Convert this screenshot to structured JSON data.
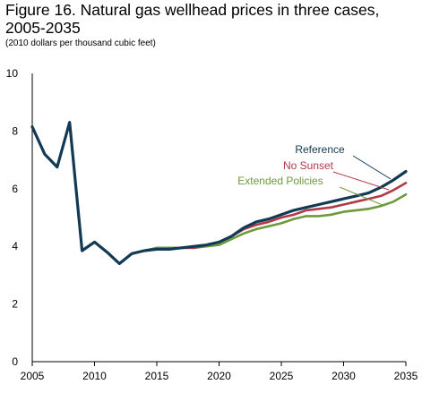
{
  "title_line1": "Figure 16. Natural gas wellhead prices in three cases,",
  "title_line2": "2005-2035",
  "subtitle": "(2010 dollars per thousand cubic feet)",
  "chart_data": {
    "type": "line",
    "title": "Figure 16. Natural gas wellhead prices in three cases, 2005-2035",
    "ylabel": "(2010 dollars per thousand cubic feet)",
    "xlabel": "",
    "xlim": [
      2005,
      2035
    ],
    "ylim": [
      0,
      10
    ],
    "x_ticks": [
      2005,
      2010,
      2015,
      2020,
      2025,
      2030,
      2035
    ],
    "y_ticks": [
      0,
      2,
      4,
      6,
      8,
      10
    ],
    "grid": false,
    "legend": "inline labels near line ends",
    "x": [
      2005,
      2006,
      2007,
      2008,
      2009,
      2010,
      2011,
      2012,
      2013,
      2014,
      2015,
      2016,
      2017,
      2018,
      2019,
      2020,
      2021,
      2022,
      2023,
      2024,
      2025,
      2026,
      2027,
      2028,
      2029,
      2030,
      2031,
      2032,
      2033,
      2034,
      2035
    ],
    "series": [
      {
        "name": "Extended Policies",
        "color": "#6f9a3c",
        "values": [
          8.15,
          7.2,
          6.75,
          8.3,
          3.85,
          4.15,
          3.8,
          3.4,
          3.75,
          3.85,
          3.95,
          3.95,
          3.95,
          3.95,
          4.0,
          4.05,
          4.25,
          4.45,
          4.6,
          4.7,
          4.8,
          4.95,
          5.05,
          5.05,
          5.1,
          5.2,
          5.25,
          5.3,
          5.4,
          5.55,
          5.8
        ]
      },
      {
        "name": "No Sunset",
        "color": "#b03a48",
        "values": [
          8.15,
          7.2,
          6.75,
          8.3,
          3.85,
          4.15,
          3.8,
          3.4,
          3.75,
          3.85,
          3.9,
          3.9,
          3.95,
          3.95,
          4.05,
          4.15,
          4.35,
          4.6,
          4.75,
          4.85,
          5.0,
          5.1,
          5.25,
          5.3,
          5.35,
          5.45,
          5.55,
          5.65,
          5.75,
          5.95,
          6.2
        ]
      },
      {
        "name": "Reference",
        "color": "#123a55",
        "values": [
          8.15,
          7.2,
          6.75,
          8.3,
          3.85,
          4.15,
          3.8,
          3.4,
          3.75,
          3.85,
          3.9,
          3.9,
          3.95,
          4.0,
          4.05,
          4.15,
          4.35,
          4.65,
          4.85,
          4.95,
          5.1,
          5.25,
          5.35,
          5.45,
          5.55,
          5.65,
          5.75,
          5.85,
          6.05,
          6.3,
          6.6
        ]
      }
    ]
  }
}
